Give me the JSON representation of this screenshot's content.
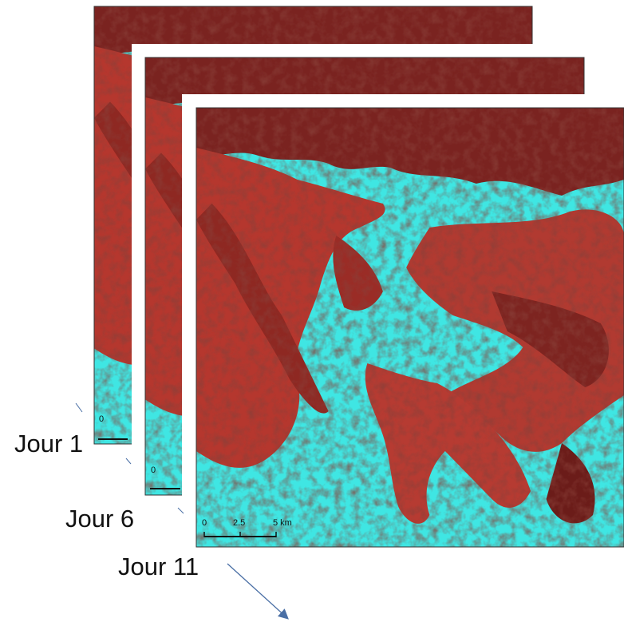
{
  "images": [
    {
      "label": "Jour 1",
      "scale_labels": [
        "0"
      ]
    },
    {
      "label": "Jour 6",
      "scale_labels": [
        "0"
      ]
    },
    {
      "label": "Jour 11",
      "scale_labels": [
        "0",
        "2.5",
        "5 km"
      ]
    }
  ]
}
